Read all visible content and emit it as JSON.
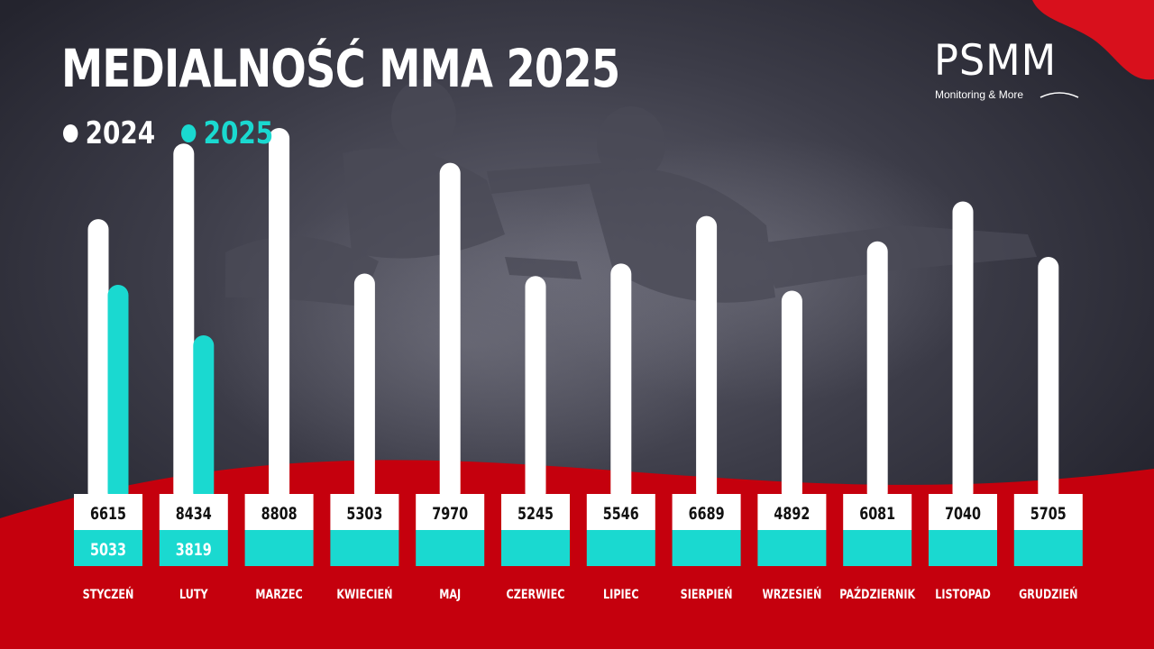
{
  "title": "MEDIALNOŚĆ MMA 2025",
  "logo": {
    "name": "PSMM",
    "tagline": "Monitoring & More"
  },
  "colors": {
    "series_2024": "#ffffff",
    "series_2025": "#1ad9d0",
    "accent_red": "#c5000d",
    "background": "#2a2a35"
  },
  "chart_data": {
    "type": "bar",
    "title": "MEDIALNOŚĆ MMA 2025",
    "categories": [
      "STYCZEŃ",
      "LUTY",
      "MARZEC",
      "KWIECIEŃ",
      "MAJ",
      "CZERWIEC",
      "LIPIEC",
      "SIERPIEŃ",
      "WRZESIEŃ",
      "PAŹDZIERNIK",
      "LISTOPAD",
      "GRUDZIEŃ"
    ],
    "series": [
      {
        "name": "2024",
        "color": "#ffffff",
        "values": [
          6615,
          8434,
          8808,
          5303,
          7970,
          5245,
          5546,
          6689,
          4892,
          6081,
          7040,
          5705
        ]
      },
      {
        "name": "2025",
        "color": "#1ad9d0",
        "values": [
          5033,
          3819,
          null,
          null,
          null,
          null,
          null,
          null,
          null,
          null,
          null,
          null
        ]
      }
    ],
    "legend": "top-left",
    "grid": false,
    "xlabel": "",
    "ylabel": ""
  }
}
